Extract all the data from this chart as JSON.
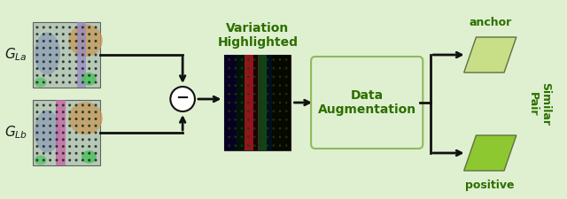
{
  "bg_color": "#dff0d0",
  "border_color": "#90b860",
  "title_text": "Variation\nHighlighted",
  "title_color": "#2d6e00",
  "title_fontsize": 10,
  "da_text": "Data\nAugmentation",
  "da_color": "#2d6e00",
  "da_fontsize": 10,
  "anchor_text": "anchor",
  "positive_text": "positive",
  "similar_pair_text": "Similar\nPair",
  "label_color": "#2d6e00",
  "label_fontsize": 9,
  "gla_text": "$G_{La}$",
  "glb_text": "$G_{Lb}$",
  "g_label_color": "#1a1a1a",
  "g_label_fontsize": 11,
  "arrow_color": "#111111",
  "minus_circle_color": "#ffffff",
  "minus_circle_edge": "#111111",
  "parallelogram_fill_anchor": "#c8df88",
  "parallelogram_fill_positive": "#8ec830",
  "parallelogram_edge": "#607040"
}
